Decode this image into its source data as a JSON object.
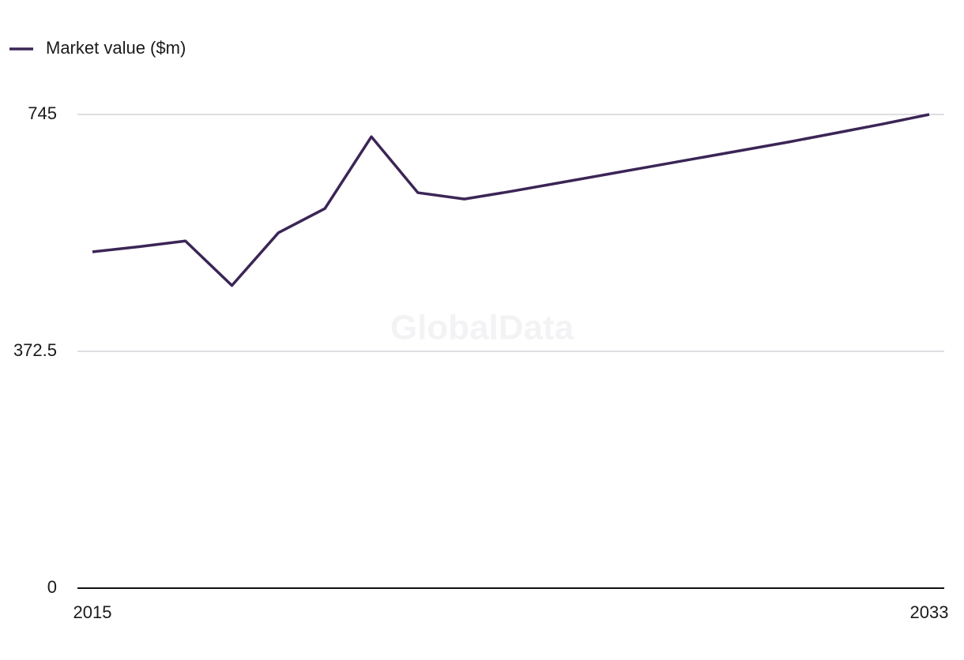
{
  "chart_data": {
    "type": "line",
    "watermark": "GlobalData",
    "x": [
      2015,
      2016,
      2017,
      2018,
      2019,
      2020,
      2021,
      2022,
      2023,
      2024,
      2025,
      2026,
      2027,
      2028,
      2029,
      2030,
      2031,
      2032,
      2033
    ],
    "series": [
      {
        "name": "Market value ($m)",
        "color": "#3b2556",
        "values": [
          529,
          537,
          546,
          476,
          559,
          597,
          710,
          622,
          612,
          624,
          637,
          650,
          663,
          676,
          689,
          702,
          716,
          730,
          745
        ]
      }
    ],
    "xlim": [
      2015,
      2033
    ],
    "xticks": [
      2015,
      2033
    ],
    "ylim": [
      0,
      745
    ],
    "yticks": [
      0,
      372.5,
      745
    ],
    "grid": true,
    "legend": "top-left"
  }
}
